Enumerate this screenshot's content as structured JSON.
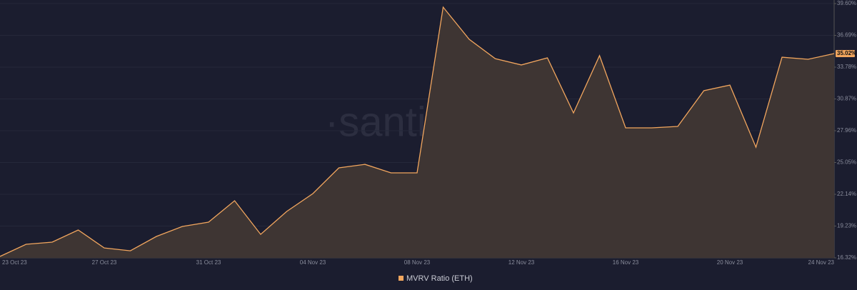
{
  "chart_data": {
    "type": "area",
    "watermark": "·santiment·",
    "categories": [
      "23 Oct 23",
      null,
      null,
      null,
      "27 Oct 23",
      null,
      null,
      null,
      "31 Oct 23",
      null,
      null,
      null,
      "04 Nov 23",
      null,
      null,
      null,
      "08 Nov 23",
      null,
      null,
      null,
      "12 Nov 23",
      null,
      null,
      null,
      "16 Nov 23",
      null,
      null,
      null,
      "20 Nov 23",
      null,
      null,
      null,
      "24 Nov 23"
    ],
    "series": [
      {
        "name": "MVRV Ratio (ETH)",
        "color": "#f2a65e",
        "values": [
          16.45,
          17.56,
          17.76,
          18.87,
          17.23,
          16.97,
          18.28,
          19.2,
          19.59,
          21.55,
          18.47,
          20.57,
          22.2,
          24.56,
          24.88,
          24.1,
          24.1,
          39.27,
          36.33,
          34.56,
          33.98,
          34.63,
          29.59,
          34.83,
          28.22,
          28.22,
          28.35,
          31.62,
          32.14,
          26.45,
          34.69,
          34.5,
          35.02
        ],
        "value_labels": [
          null,
          null,
          null,
          null,
          null,
          null,
          null,
          null,
          null,
          null,
          null,
          null,
          null,
          null,
          null,
          null,
          null,
          null,
          null,
          null,
          null,
          null,
          null,
          null,
          null,
          null,
          null,
          null,
          null,
          null,
          null,
          null,
          "35.02%"
        ]
      }
    ],
    "ylim": [
      16.32,
      39.6
    ],
    "yticks": [
      {
        "value": 16.32,
        "label": "16.32%"
      },
      {
        "value": 19.23,
        "label": "19.23%"
      },
      {
        "value": 22.14,
        "label": "22.14%"
      },
      {
        "value": 25.05,
        "label": "25.05%"
      },
      {
        "value": 27.96,
        "label": "27.96%"
      },
      {
        "value": 30.87,
        "label": "30.87%"
      },
      {
        "value": 33.78,
        "label": "33.78%"
      },
      {
        "value": 36.69,
        "label": "36.69%"
      },
      {
        "value": 39.6,
        "label": "39.60%"
      }
    ],
    "grid": true
  }
}
